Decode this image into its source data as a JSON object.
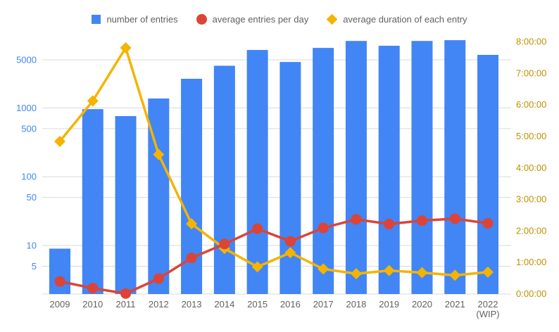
{
  "chart_data": {
    "type": "combo",
    "categories": [
      "2009",
      "2010",
      "2011",
      "2012",
      "2013",
      "2014",
      "2015",
      "2016",
      "2017",
      "2018",
      "2019",
      "2020",
      "2021",
      "2022 (WIP)"
    ],
    "series": [
      {
        "name": "number of entries",
        "type": "bar",
        "marker": "square",
        "axis": "left",
        "color": "#4285F4",
        "values": [
          9,
          960,
          760,
          1370,
          2650,
          4100,
          6950,
          4650,
          7450,
          9400,
          8000,
          9400,
          9650,
          5900
        ]
      },
      {
        "name": "average entries per day",
        "type": "line",
        "marker": "circle",
        "axis": "left",
        "color": "#DB4437",
        "values": [
          3.0,
          2.4,
          2.0,
          3.3,
          6.6,
          10.5,
          17.5,
          11.5,
          18,
          24,
          20.5,
          23,
          24.5,
          21
        ]
      },
      {
        "name": "average duration of each entry",
        "type": "line",
        "marker": "diamond",
        "axis": "right",
        "color": "#F4B400",
        "values_hms": [
          "4:50:00",
          "6:07:00",
          "7:48:00",
          "4:25:00",
          "2:13:00",
          "1:26:00",
          "0:51:00",
          "1:18:00",
          "0:47:00",
          "0:38:00",
          "0:44:00",
          "0:40:00",
          "0:35:00",
          "0:41:00"
        ],
        "values_hours": [
          4.833,
          6.117,
          7.8,
          4.417,
          2.217,
          1.433,
          0.85,
          1.3,
          0.783,
          0.633,
          0.733,
          0.667,
          0.583,
          0.683
        ]
      }
    ],
    "left_axis": {
      "scale": "log",
      "ticks": [
        5,
        10,
        50,
        100,
        500,
        1000,
        5000
      ],
      "label_color": "#4285F4"
    },
    "right_axis": {
      "scale": "linear",
      "ticks": [
        "0:00:00",
        "1:00:00",
        "2:00:00",
        "3:00:00",
        "4:00:00",
        "5:00:00",
        "6:00:00",
        "7:00:00",
        "8:00:00"
      ],
      "min_hours": 0,
      "max_hours": 8,
      "label_color": "#BF9000"
    },
    "x_axis": {
      "label_color": "#616161"
    },
    "grid_color": "#d9d9d9",
    "legend": {
      "position": "top",
      "text_color": "#616161"
    },
    "background": "#ffffff"
  }
}
